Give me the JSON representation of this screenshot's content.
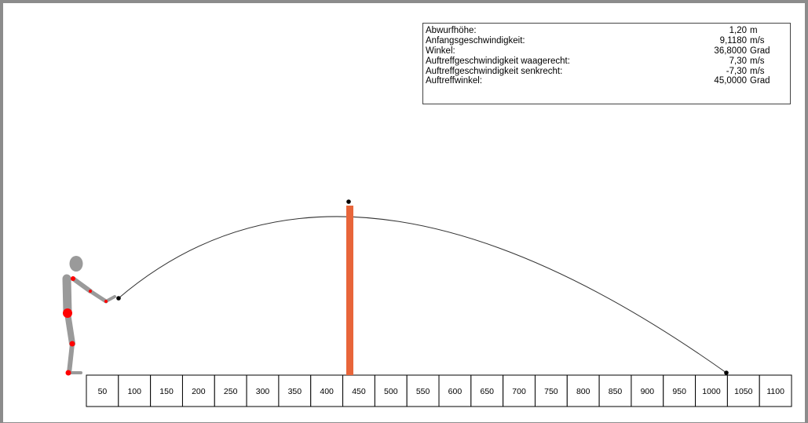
{
  "info_panel": {
    "rows": [
      {
        "label": "Abwurfhöhe:",
        "value": "1,20",
        "unit": "m"
      },
      {
        "label": "Anfangsgeschwindigkeit:",
        "value": "9,1180",
        "unit": "m/s"
      },
      {
        "label": "Winkel:",
        "value": "36,8000",
        "unit": "Grad"
      },
      {
        "label": "Auftreffgeschwindigkeit waagerecht:",
        "value": "7,30",
        "unit": "m/s"
      },
      {
        "label": "Auftreffgeschwindigkeit senkrecht:",
        "value": "-7,30",
        "unit": "m/s"
      },
      {
        "label": "Auftreffwinkel:",
        "value": "45,0000",
        "unit": "Grad"
      }
    ]
  },
  "ruler": {
    "labels": [
      "50",
      "100",
      "150",
      "200",
      "250",
      "300",
      "350",
      "400",
      "450",
      "500",
      "550",
      "600",
      "650",
      "700",
      "750",
      "800",
      "850",
      "900",
      "950",
      "1000",
      "1050",
      "1100"
    ]
  },
  "colors": {
    "obstacle": "#e8653a",
    "joint": "#ff0000",
    "figure": "#9a9a9a",
    "trajectory": "#333333",
    "frame": "#8c8c8c"
  },
  "icons": {
    "thrower": "stick-figure-thrower-icon",
    "obstacle": "vertical-bar-obstacle-icon"
  }
}
